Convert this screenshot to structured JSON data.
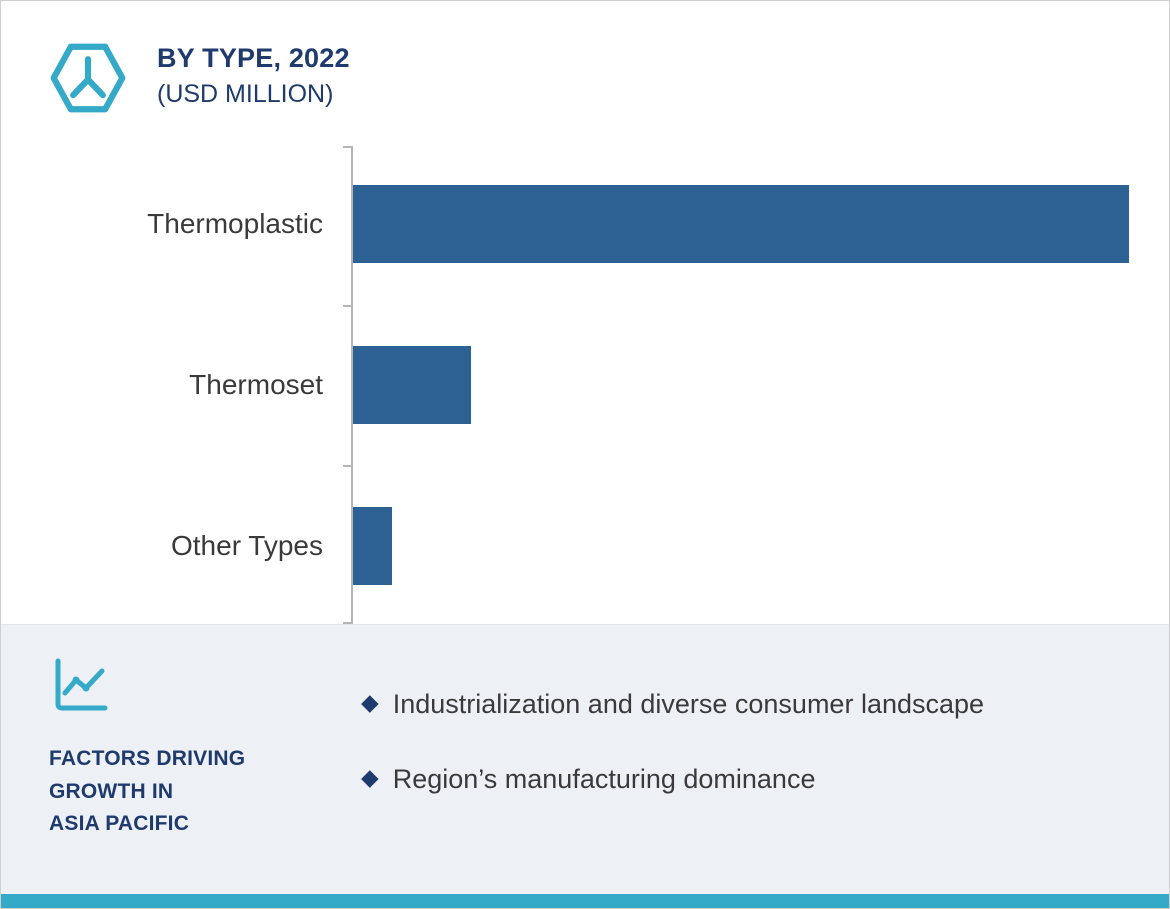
{
  "colors": {
    "bar": "#2d6194",
    "navy_text": "#1f3a6d",
    "teal_accent": "#35aac8",
    "footer_background": "#edf0f5"
  },
  "chart_data": {
    "type": "bar",
    "orientation": "horizontal",
    "title": "BY TYPE, 2022",
    "subtitle": "(USD MILLION)",
    "categories": [
      "Thermoplastic",
      "Thermoset",
      "Other Types"
    ],
    "values": [
      100,
      15.4,
      5.3
    ],
    "values_note": "axis values not labeled on chart; values estimated as percent of largest bar",
    "xlabel": "",
    "ylabel": "",
    "legend": "none",
    "grid": "off",
    "bar_color": "#2d6194"
  },
  "footer": {
    "heading": "FACTORS DRIVING GROWTH IN ASIA PACIFIC",
    "heading_lines": [
      "FACTORS DRIVING",
      "GROWTH IN",
      "ASIA PACIFIC"
    ],
    "bullets": [
      "Industrialization and diverse consumer landscape",
      "Region’s manufacturing dominance"
    ]
  }
}
